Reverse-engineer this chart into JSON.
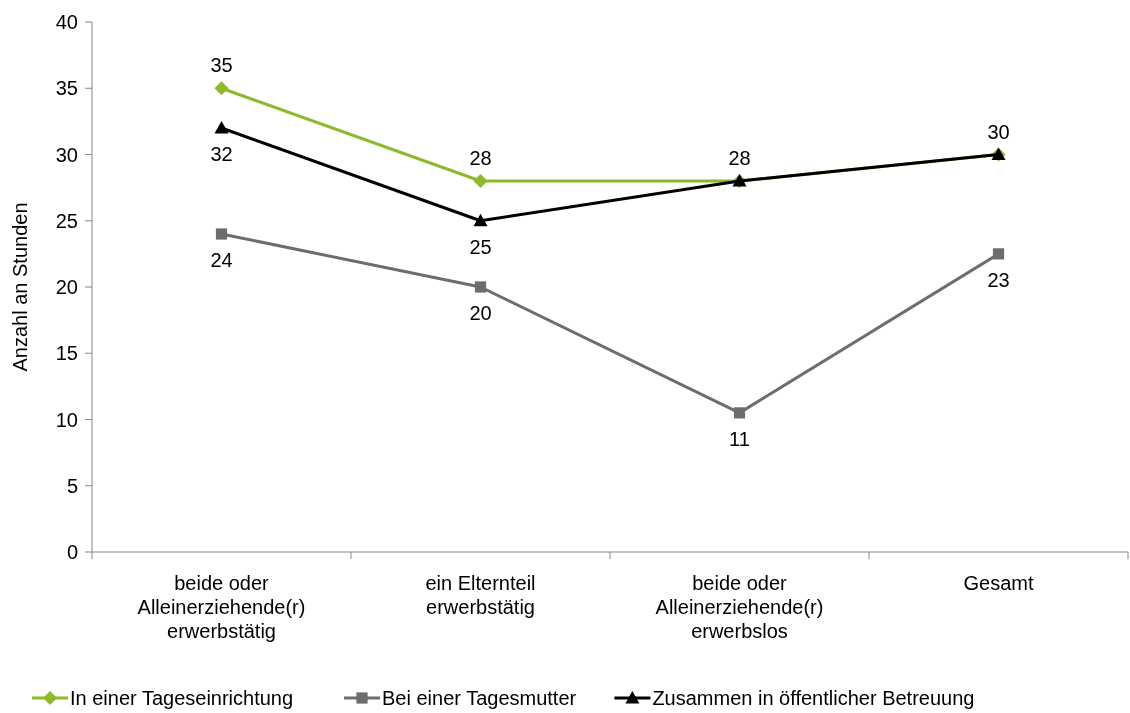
{
  "chart_data": {
    "type": "line",
    "ylabel": "Anzahl an Stunden",
    "categories": [
      "beide oder Alleinerziehende(r) erwerbstätig",
      "ein Elternteil erwerbstätig",
      "beide oder Alleinerziehende(r) erwerbslos",
      "Gesamt"
    ],
    "ylim": [
      0,
      40
    ],
    "yticks": [
      0,
      5,
      10,
      15,
      20,
      25,
      30,
      35,
      40
    ],
    "grid": false,
    "legend": "bottom",
    "series": [
      {
        "name": "In einer Tageseinrichtung",
        "color": "#8cba28",
        "marker": "diamond",
        "values": [
          35,
          28,
          28,
          30
        ],
        "value_labels": [
          "35",
          "28",
          "28",
          "30"
        ]
      },
      {
        "name": "Bei einer Tagesmutter",
        "color": "#6d6d6d",
        "marker": "square",
        "values": [
          24,
          20,
          10.5,
          22.5
        ],
        "value_labels": [
          "24",
          "20",
          "11",
          "23"
        ]
      },
      {
        "name": "Zusammen in öffentlicher Betreuung",
        "color": "#000000",
        "marker": "triangle",
        "values": [
          32,
          25,
          28,
          30
        ],
        "value_labels": [
          "32",
          "25",
          null,
          null
        ]
      }
    ]
  }
}
